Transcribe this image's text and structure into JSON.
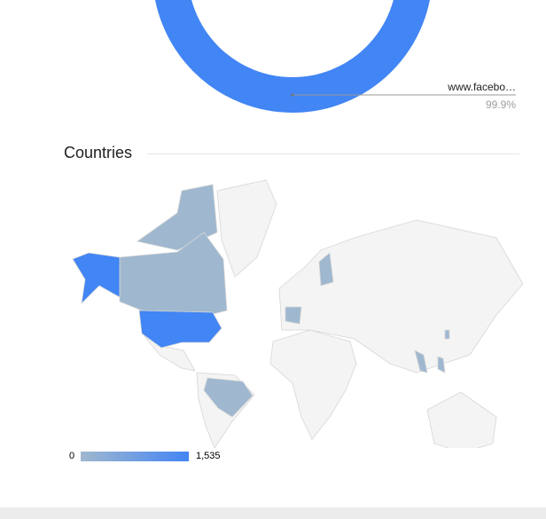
{
  "donut": {
    "slices": [
      {
        "label": "www.facebo…",
        "percent_label": "99.9%",
        "percent": 99.9,
        "color": "#4285f4"
      }
    ]
  },
  "countries": {
    "title": "Countries",
    "legend": {
      "min": "0",
      "max": "1,535",
      "min_color": "#a0b8cf",
      "max_color": "#4285f4"
    },
    "colors": {
      "none": "#f4f4f4",
      "border": "#d6d6d6",
      "low": "#9fb8cf",
      "high": "#4285f4"
    },
    "highlighted_high": [
      "United States"
    ],
    "highlighted_low": [
      "Canada",
      "Brazil",
      "Finland",
      "France",
      "Vietnam",
      "Philippines",
      "Taiwan"
    ]
  }
}
